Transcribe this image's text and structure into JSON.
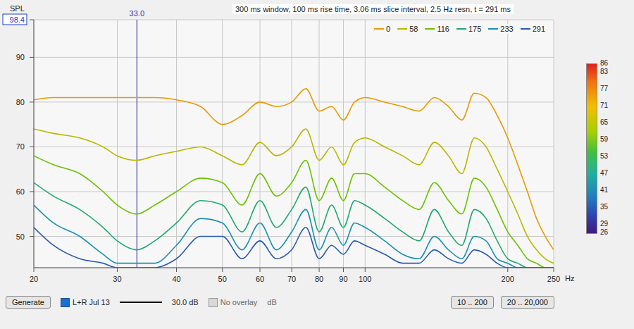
{
  "chart_data": {
    "type": "line",
    "annotation": "300 ms window, 100 ms rise time, 3.06 ms slice interval, 2.5 Hz resn, t = 291 ms",
    "x_label": "Hz",
    "y_label": "SPL",
    "log": "x",
    "grid": true,
    "legend": "top-right",
    "xlim": [
      20,
      250
    ],
    "xticks": [
      20,
      30,
      40,
      50,
      60,
      70,
      80,
      90,
      100,
      200,
      250
    ],
    "ylim": [
      43,
      98.4
    ],
    "yticks": [
      50,
      60,
      70,
      80,
      90,
      98.4
    ],
    "cursor": {
      "x": {
        "value": 33,
        "label": "33.0"
      }
    },
    "x": [
      20,
      22,
      25,
      28,
      30,
      33,
      36,
      40,
      45,
      50,
      55,
      60,
      65,
      70,
      75,
      80,
      85,
      90,
      95,
      100,
      110,
      120,
      130,
      140,
      150,
      160,
      170,
      180,
      190,
      200,
      210,
      220,
      230,
      240,
      250
    ],
    "series": [
      {
        "name": "0",
        "color": "#e89a00",
        "values": [
          80.5,
          81,
          81,
          81,
          81,
          81,
          81,
          80.5,
          79,
          75,
          77,
          80,
          79,
          80,
          83,
          78,
          79,
          76,
          80,
          81,
          80,
          79,
          78,
          81,
          79,
          76,
          82,
          81,
          77,
          72,
          66,
          60,
          54,
          50,
          47
        ]
      },
      {
        "name": "58",
        "color": "#b8b800",
        "values": [
          74,
          73,
          72,
          70,
          68,
          67,
          68,
          69,
          70,
          68,
          66,
          71,
          68,
          70,
          74,
          67,
          70,
          66,
          71,
          72,
          70,
          68,
          66,
          71,
          68,
          64,
          72,
          70,
          65,
          60,
          55,
          50,
          47,
          45,
          44
        ]
      },
      {
        "name": "116",
        "color": "#6cc000",
        "values": [
          68,
          66,
          64,
          60,
          57,
          55,
          57,
          60,
          63,
          62,
          57,
          64,
          59,
          62,
          67,
          58,
          63,
          58,
          64,
          64,
          61,
          58,
          56,
          62,
          58,
          55,
          63,
          61,
          56,
          51,
          48,
          45,
          44,
          43,
          43
        ]
      },
      {
        "name": "175",
        "color": "#20a870",
        "values": [
          62,
          59,
          56,
          52,
          49,
          47,
          49,
          53,
          58,
          57,
          51,
          58,
          52,
          56,
          61,
          51,
          57,
          52,
          58,
          57,
          54,
          51,
          49,
          56,
          51,
          48,
          56,
          54,
          49,
          45,
          44,
          43,
          43,
          43,
          43
        ]
      },
      {
        "name": "233",
        "color": "#1890b0",
        "values": [
          57,
          53,
          50,
          46,
          44,
          44,
          44,
          48,
          54,
          53,
          47,
          53,
          47,
          51,
          56,
          47,
          52,
          48,
          53,
          52,
          49,
          46,
          45,
          50,
          47,
          45,
          50,
          49,
          45,
          44,
          43,
          43,
          43,
          43,
          43
        ]
      },
      {
        "name": "291",
        "color": "#2a5ab0",
        "values": [
          52,
          48,
          45,
          44,
          43,
          43,
          43,
          45,
          50,
          50,
          45,
          49,
          45,
          47,
          52,
          45,
          48,
          46,
          49,
          48,
          46,
          44,
          44,
          47,
          45,
          44,
          47,
          46,
          44,
          43,
          43,
          43,
          43,
          43,
          43
        ]
      }
    ],
    "color_bar": {
      "range": [
        26,
        86
      ],
      "ticks": [
        29,
        35,
        41,
        47,
        53,
        59,
        65,
        71,
        77,
        83
      ]
    },
    "buttons": [
      "Generate",
      "10 .. 200",
      "20 .. 20,000"
    ],
    "overlay": {
      "checked": "L+R Jul 13",
      "range": "30.0 dB",
      "option": "No overlay",
      "unit": "dB"
    }
  }
}
